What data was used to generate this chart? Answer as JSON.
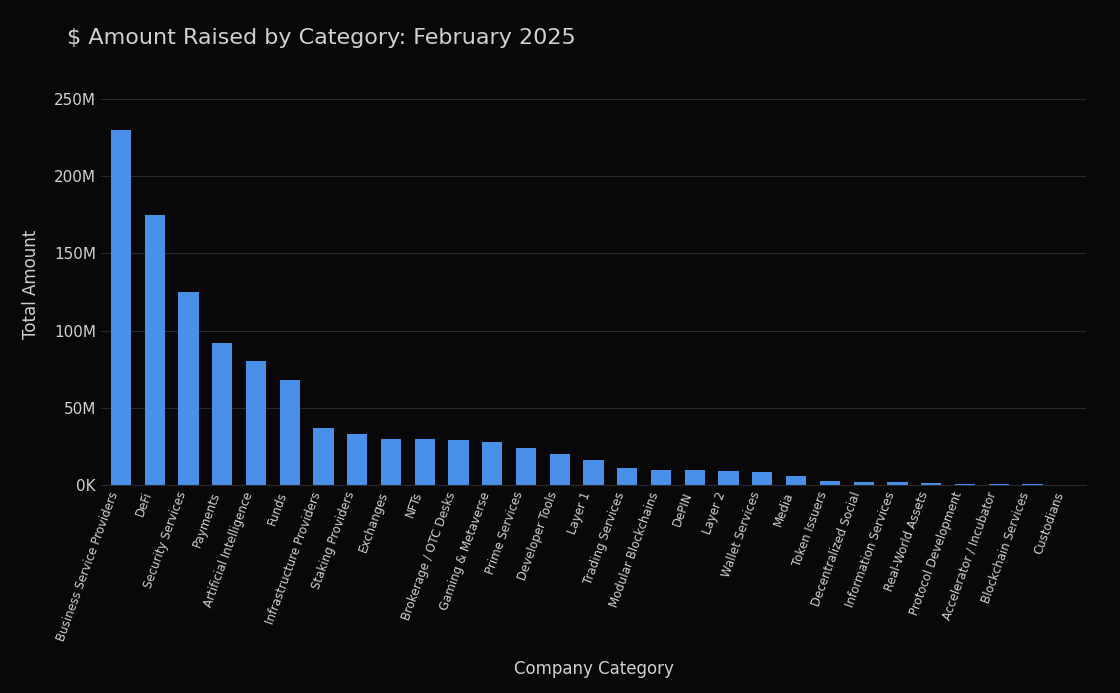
{
  "title": "$ Amount Raised by Category: February 2025",
  "xlabel": "Company Category",
  "ylabel": "Total Amount",
  "background_color": "#080808",
  "text_color": "#d0d0d0",
  "bar_color": "#4a8fe8",
  "grid_color": "#2a2a2a",
  "categories": [
    "Business Service Providers",
    "DeFi",
    "Security Services",
    "Payments",
    "Artificial Intelligence",
    "Funds",
    "Infrastructure Providers",
    "Staking Providers",
    "Exchanges",
    "NFTs",
    "Brokerage / OTC Desks",
    "Gaming & Metaverse",
    "Prime Services",
    "Developer Tools",
    "Layer 1",
    "Trading Services",
    "Modular Blockchains",
    "DePIN",
    "Layer 2",
    "Wallet Services",
    "Media",
    "Token Issuers",
    "Decentralized Social",
    "Information Services",
    "Real-World Assets",
    "Protocol Development",
    "Accelerator / Incubator",
    "Blockchain Services",
    "Custodians"
  ],
  "values": [
    230000000,
    175000000,
    125000000,
    92000000,
    80000000,
    68000000,
    37000000,
    33000000,
    30000000,
    30000000,
    29000000,
    28000000,
    24000000,
    20000000,
    16000000,
    11000000,
    10000000,
    9500000,
    9000000,
    8500000,
    6000000,
    2500000,
    2000000,
    2000000,
    1500000,
    1000000,
    800000,
    500000,
    300000
  ],
  "ylim": [
    0,
    260000000
  ],
  "yticks": [
    0,
    50000000,
    100000000,
    150000000,
    200000000,
    250000000
  ],
  "ytick_labels": [
    "0K",
    "50M",
    "100M",
    "150M",
    "200M",
    "250M"
  ]
}
